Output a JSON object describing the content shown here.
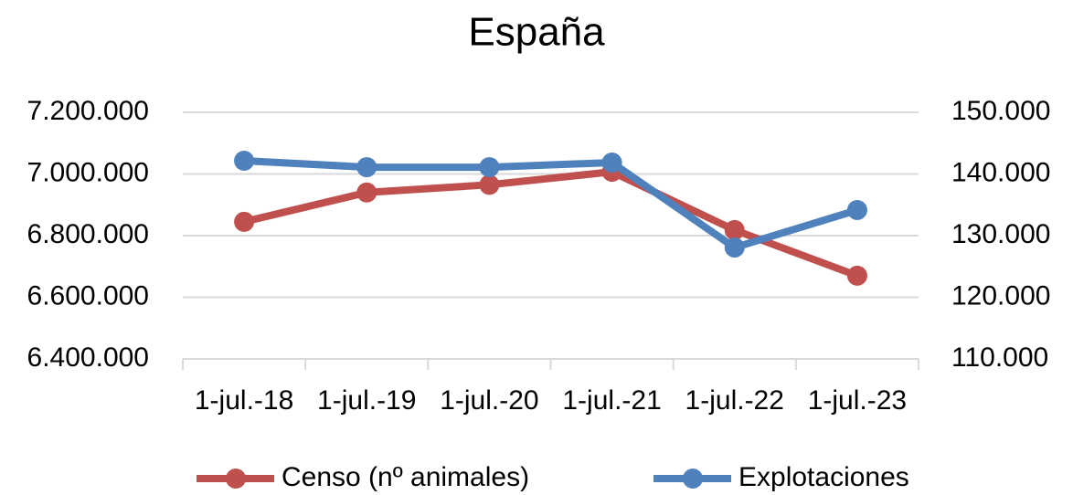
{
  "chart_data": {
    "type": "line",
    "title": "España",
    "categories": [
      "1-jul.-18",
      "1-jul.-19",
      "1-jul.-20",
      "1-jul.-21",
      "1-jul.-22",
      "1-jul.-23"
    ],
    "series": [
      {
        "name": "Censo (nº animales)",
        "color": "#c0504d",
        "values": [
          6845000,
          6940000,
          6965000,
          7007000,
          6818000,
          6670000
        ]
      },
      {
        "name": "Explotaciones",
        "color": "#4f81bd",
        "axis": "y2",
        "values": [
          142150,
          141100,
          141100,
          141850,
          128070,
          134150
        ]
      }
    ],
    "ylim": [
      6400000,
      7200000
    ],
    "yticks": [
      {
        "value": 6400000,
        "label": "6.400.000"
      },
      {
        "value": 6600000,
        "label": "6.600.000"
      },
      {
        "value": 6800000,
        "label": "6.800.000"
      },
      {
        "value": 7000000,
        "label": "7.000.000"
      },
      {
        "value": 7200000,
        "label": "7.200.000"
      }
    ],
    "y2lim": [
      110000,
      150000
    ],
    "y2ticks": [
      {
        "value": 110000,
        "label": "110.000"
      },
      {
        "value": 120000,
        "label": "120.000"
      },
      {
        "value": 130000,
        "label": "130.000"
      },
      {
        "value": 140000,
        "label": "140.000"
      },
      {
        "value": 150000,
        "label": "150.000"
      }
    ],
    "grid": true,
    "legend": "bottom"
  }
}
